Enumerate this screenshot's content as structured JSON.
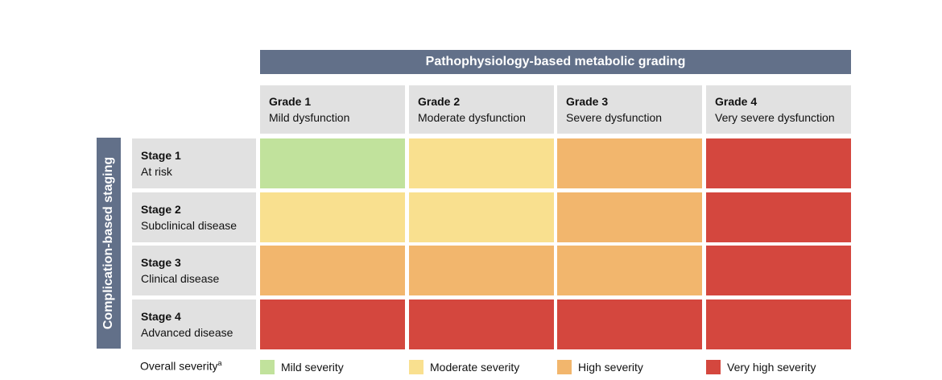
{
  "top_header": "Pathophysiology-based metabolic grading",
  "side_header": "Complication-based staging",
  "grades": [
    {
      "title": "Grade 1",
      "subtitle": "Mild dysfunction"
    },
    {
      "title": "Grade 2",
      "subtitle": "Moderate dysfunction"
    },
    {
      "title": "Grade 3",
      "subtitle": "Severe dysfunction"
    },
    {
      "title": "Grade 4",
      "subtitle": "Very severe dysfunction"
    }
  ],
  "stages": [
    {
      "title": "Stage 1",
      "subtitle": "At risk"
    },
    {
      "title": "Stage 2",
      "subtitle": "Subclinical disease"
    },
    {
      "title": "Stage 3",
      "subtitle": "Clinical disease"
    },
    {
      "title": "Stage 4",
      "subtitle": "Advanced disease"
    }
  ],
  "severity_levels": [
    {
      "label": "Mild severity",
      "color": "#c1e29c"
    },
    {
      "label": "Moderate severity",
      "color": "#f9e08f"
    },
    {
      "label": "High severity",
      "color": "#f2b66d"
    },
    {
      "label": "Very high severity",
      "color": "#d4473e"
    }
  ],
  "matrix": [
    [
      0,
      1,
      2,
      3
    ],
    [
      1,
      1,
      2,
      3
    ],
    [
      2,
      2,
      2,
      3
    ],
    [
      3,
      3,
      3,
      3
    ]
  ],
  "legend": {
    "title": "Overall severity",
    "footnote": "a"
  }
}
